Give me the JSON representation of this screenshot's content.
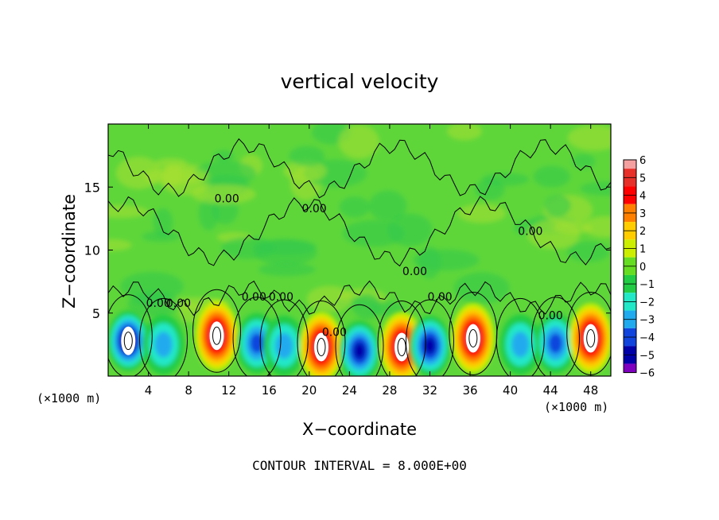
{
  "chart_data": {
    "type": "heatmap",
    "title": "vertical velocity",
    "xlabel": "X−coordinate",
    "ylabel": "Z−coordinate",
    "x_unit": "(×1000 m)",
    "xlim": [
      0,
      50
    ],
    "ylim": [
      0,
      20
    ],
    "x_ticks": [
      "4",
      "8",
      "12",
      "16",
      "20",
      "24",
      "28",
      "32",
      "36",
      "40",
      "44",
      "48"
    ],
    "x_tick_values": [
      4,
      8,
      12,
      16,
      20,
      24,
      28,
      32,
      36,
      40,
      44,
      48
    ],
    "y_ticks": [
      "5",
      "10",
      "15"
    ],
    "y_tick_values": [
      5,
      10,
      15
    ],
    "colorbar": {
      "labels": [
        "6",
        "5",
        "4",
        "3",
        "2",
        "1",
        "0",
        "−1",
        "−2",
        "−3",
        "−4",
        "−5",
        "−6"
      ],
      "values": [
        6,
        5,
        4,
        3,
        2,
        1,
        0,
        -1,
        -2,
        -3,
        -4,
        -5,
        -6
      ],
      "colors": [
        "#f4a0a0",
        "#e8302a",
        "#ff0000",
        "#ff8000",
        "#ffcc00",
        "#ccee00",
        "#66dd22",
        "#22cc44",
        "#22e8c8",
        "#22aaee",
        "#1144dd",
        "#0000a8",
        "#8000c0"
      ]
    },
    "contour_labels": [
      "0.00",
      "0.00",
      "0.00",
      "0.00",
      "0.00",
      "0.00",
      "0.00",
      "0.00",
      "0.00",
      "0.00",
      "0.00"
    ],
    "cells": [
      {
        "x": 2.0,
        "z": 2.8,
        "w": -6
      },
      {
        "x": 5.5,
        "z": 2.5,
        "w": -3
      },
      {
        "x": 10.8,
        "z": 3.2,
        "w": 6
      },
      {
        "x": 14.8,
        "z": 2.6,
        "w": -4
      },
      {
        "x": 17.5,
        "z": 2.4,
        "w": -3
      },
      {
        "x": 21.2,
        "z": 2.3,
        "w": 6
      },
      {
        "x": 25.0,
        "z": 2.0,
        "w": -5
      },
      {
        "x": 29.2,
        "z": 2.3,
        "w": 6
      },
      {
        "x": 32.0,
        "z": 2.4,
        "w": -5
      },
      {
        "x": 36.3,
        "z": 3.0,
        "w": 6
      },
      {
        "x": 41.0,
        "z": 2.5,
        "w": -3
      },
      {
        "x": 44.5,
        "z": 2.6,
        "w": -4
      },
      {
        "x": 48.0,
        "z": 3.0,
        "w": 6
      }
    ],
    "grid": false,
    "legend_placement": "right"
  },
  "texts": {
    "title": "vertical velocity",
    "xlabel": "X−coordinate",
    "ylabel": "Z−coordinate",
    "x_unit_left": "(×1000 m)",
    "x_unit_right": "(×1000 m)",
    "contour_note": "CONTOUR INTERVAL = 8.000E+00"
  }
}
